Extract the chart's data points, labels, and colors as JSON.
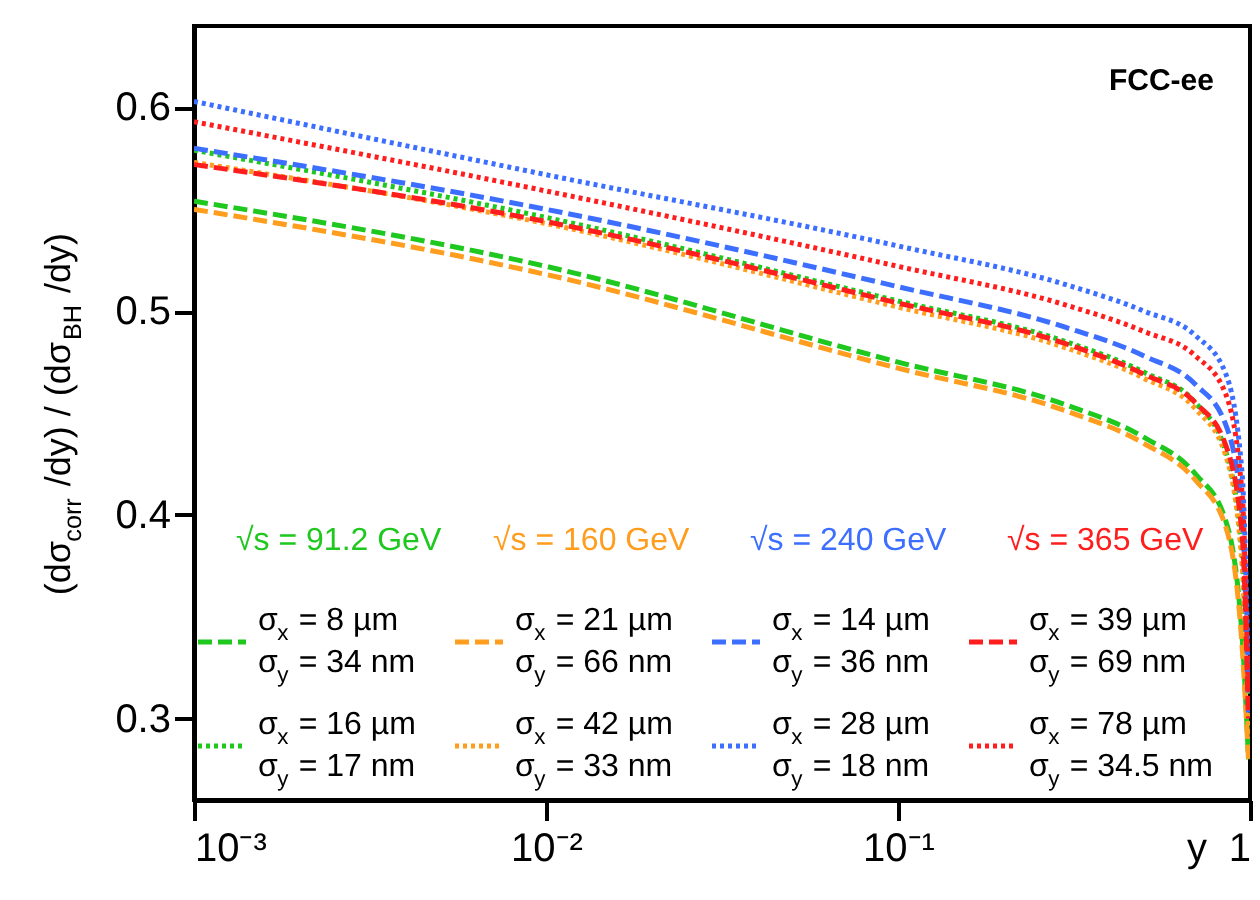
{
  "chart_data": {
    "type": "line",
    "xlabel": "y",
    "ylabel": "(dσ$_{corr}$ /dy) / (dσ$_{BH}$ /dy)",
    "x": [
      0.001,
      0.01,
      0.1,
      0.3,
      0.5,
      0.7,
      0.85,
      0.95,
      0.99
    ],
    "series": [
      {
        "name": "σ$_{x}$ = 8 µm\nσ$_{y}$ = 34 nm",
        "color": "#1ec81e",
        "line_style": "dashed",
        "values": [
          0.554,
          0.522,
          0.475,
          0.454,
          0.438,
          0.42,
          0.398,
          0.34,
          0.28
        ]
      },
      {
        "name": "σ$_{x}$ = 16 µm\nσ$_{y}$ = 17 nm",
        "color": "#1ec81e",
        "line_style": "dotted",
        "values": [
          0.579,
          0.546,
          0.505,
          0.485,
          0.47,
          0.455,
          0.432,
          0.38,
          0.29
        ]
      },
      {
        "name": "σ$_{x}$ = 21 µm\nσ$_{y}$ = 66 nm",
        "color": "#ff9d1e",
        "line_style": "dashed",
        "values": [
          0.55,
          0.518,
          0.472,
          0.451,
          0.435,
          0.417,
          0.395,
          0.335,
          0.28
        ]
      },
      {
        "name": "σ$_{x}$ = 42 µm\nσ$_{y}$ = 33 nm",
        "color": "#ff9d1e",
        "line_style": "dotted",
        "values": [
          0.573,
          0.543,
          0.502,
          0.482,
          0.467,
          0.452,
          0.43,
          0.375,
          0.29
        ]
      },
      {
        "name": "σ$_{x}$ = 14 µm\nσ$_{y}$ = 36 nm",
        "color": "#3c6eff",
        "line_style": "dashed",
        "values": [
          0.58,
          0.55,
          0.512,
          0.492,
          0.478,
          0.464,
          0.445,
          0.4,
          0.3
        ]
      },
      {
        "name": "σ$_{x}$ = 28 µm\nσ$_{y}$ = 18 nm",
        "color": "#3c6eff",
        "line_style": "dotted",
        "values": [
          0.603,
          0.567,
          0.532,
          0.513,
          0.5,
          0.488,
          0.47,
          0.42,
          0.32
        ]
      },
      {
        "name": "σ$_{x}$ = 39 µm\nσ$_{y}$ = 69 nm",
        "color": "#ff1e1e",
        "line_style": "dashed",
        "values": [
          0.572,
          0.544,
          0.504,
          0.484,
          0.469,
          0.455,
          0.435,
          0.39,
          0.3
        ]
      },
      {
        "name": "σ$_{x}$ = 78 µm\nσ$_{y}$ = 34.5 nm",
        "color": "#ff1e1e",
        "line_style": "dotted",
        "values": [
          0.593,
          0.559,
          0.522,
          0.503,
          0.49,
          0.478,
          0.46,
          0.41,
          0.31
        ]
      }
    ],
    "annotations": [
      "FCC-ee",
      "√s = 91.2 GeV",
      "√s = 160 GeV",
      "√s = 240 GeV",
      "√s = 365 GeV"
    ],
    "log": "x",
    "xlim": [
      0.001,
      1
    ],
    "ylim": [
      0.26,
      0.64
    ],
    "xticks": [
      {
        "value": 0.001,
        "label": "10⁻³"
      },
      {
        "value": 0.01,
        "label": "10⁻²"
      },
      {
        "value": 0.1,
        "label": "10⁻¹"
      },
      1
    ],
    "yticks": [
      0.3,
      0.4,
      0.5,
      0.6
    ],
    "grid": false,
    "legend": "bottom"
  }
}
